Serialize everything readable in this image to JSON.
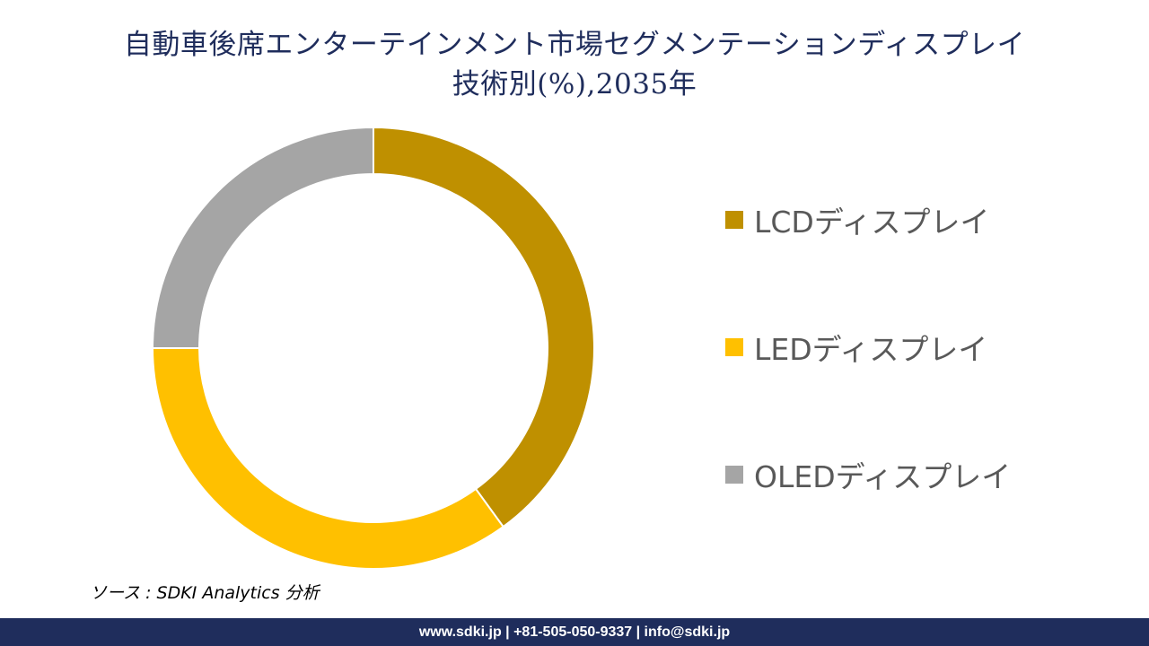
{
  "title": {
    "line1": "自動車後席エンターテインメント市場セグメンテーションディスプレイ",
    "line2": "技術別(%),2035年"
  },
  "chart_data": {
    "type": "pie",
    "style": "donut",
    "categories": [
      "LCDディスプレイ",
      "LEDディスプレイ",
      "OLEDディスプレイ"
    ],
    "values": [
      40,
      35,
      25
    ],
    "colors": [
      "#bf9000",
      "#ffc000",
      "#a5a5a5"
    ],
    "legend_position": "right"
  },
  "source": "ソース : SDKI Analytics 分析",
  "footer": "www.sdki.jp | +81-505-050-9337 | info@sdki.jp"
}
